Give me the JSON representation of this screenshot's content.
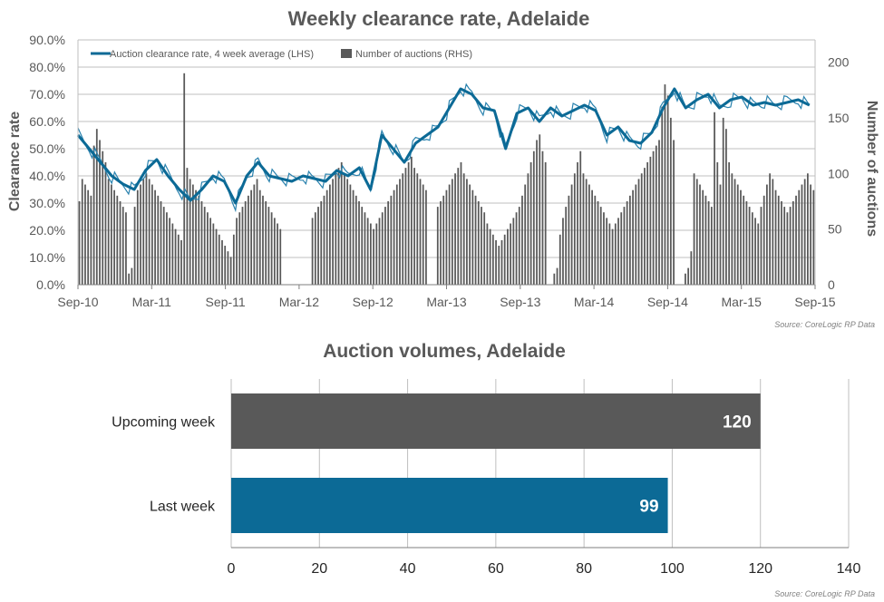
{
  "chart_data": [
    {
      "type": "line",
      "title": "Weekly clearance rate, Adelaide",
      "ylabel": "Clearance rate",
      "y2label": "Number of auctions",
      "ylim": [
        0,
        90
      ],
      "y2lim": [
        0,
        220
      ],
      "yticks": [
        "0.0%",
        "10.0%",
        "20.0%",
        "30.0%",
        "40.0%",
        "50.0%",
        "60.0%",
        "70.0%",
        "80.0%",
        "90.0%"
      ],
      "y2ticks": [
        "0",
        "50",
        "100",
        "150",
        "200"
      ],
      "x_tick_labels": [
        "Sep-10",
        "Mar-11",
        "Sep-11",
        "Mar-12",
        "Sep-12",
        "Mar-13",
        "Sep-13",
        "Mar-14",
        "Sep-14",
        "Mar-15",
        "Sep-15"
      ],
      "grid": true,
      "legend_position": "top-left",
      "legend": [
        {
          "label": "Auction clearance rate, 4 week average (LHS)",
          "kind": "line"
        },
        {
          "label": "Number of auctions (RHS)",
          "kind": "bar"
        }
      ],
      "series": [
        {
          "name": "Auction clearance rate, 4 week average (LHS)",
          "kind": "line",
          "color": "#0c6a96",
          "x": [
            0,
            4,
            8,
            12,
            16,
            20,
            24,
            28,
            32,
            36,
            40,
            44,
            48,
            52,
            56,
            60,
            64,
            68,
            72,
            76,
            80,
            84,
            88,
            92,
            96,
            100,
            104,
            108,
            112,
            116,
            120,
            124,
            128,
            132,
            136,
            140,
            144,
            148,
            152,
            156,
            160,
            164,
            168,
            172,
            176,
            180,
            184,
            188,
            192,
            196,
            200,
            204,
            208,
            212,
            216,
            220,
            224,
            228,
            232,
            236,
            240,
            244,
            248,
            252,
            256,
            260
          ],
          "values": [
            55,
            50,
            45,
            40,
            37,
            35,
            42,
            46,
            40,
            35,
            31,
            35,
            40,
            38,
            30,
            40,
            45,
            40,
            39,
            38,
            40,
            39,
            38,
            42,
            40,
            43,
            35,
            55,
            50,
            45,
            52,
            55,
            58,
            65,
            72,
            70,
            65,
            64,
            50,
            63,
            65,
            60,
            65,
            62,
            64,
            66,
            64,
            55,
            58,
            53,
            52,
            56,
            65,
            72,
            65,
            68,
            70,
            65,
            68,
            69,
            66,
            67,
            66,
            67,
            68,
            66
          ]
        },
        {
          "name": "Auction clearance rate (weekly)",
          "kind": "line",
          "color": "#2a82ae",
          "values_note": "thin line follows 4-week average with noise"
        },
        {
          "name": "Number of auctions (RHS)",
          "kind": "bar",
          "color": "#595959",
          "x_range": [
            0,
            262
          ],
          "values": [
            75,
            95,
            90,
            85,
            80,
            125,
            140,
            130,
            120,
            110,
            95,
            90,
            85,
            80,
            75,
            70,
            65,
            10,
            15,
            70,
            85,
            90,
            95,
            100,
            95,
            90,
            85,
            80,
            75,
            70,
            65,
            60,
            55,
            50,
            45,
            40,
            190,
            105,
            95,
            90,
            85,
            80,
            75,
            70,
            65,
            60,
            55,
            50,
            45,
            40,
            35,
            30,
            25,
            45,
            60,
            65,
            70,
            75,
            80,
            85,
            90,
            95,
            85,
            80,
            75,
            70,
            65,
            60,
            55,
            50,
            0,
            0,
            0,
            0,
            0,
            0,
            0,
            0,
            0,
            0,
            60,
            65,
            70,
            75,
            80,
            85,
            90,
            95,
            100,
            105,
            110,
            100,
            95,
            90,
            85,
            80,
            75,
            70,
            65,
            60,
            55,
            50,
            55,
            60,
            65,
            70,
            75,
            80,
            85,
            90,
            95,
            100,
            105,
            110,
            115,
            105,
            100,
            95,
            90,
            85,
            0,
            0,
            0,
            70,
            75,
            80,
            85,
            90,
            95,
            100,
            105,
            110,
            100,
            95,
            90,
            85,
            80,
            75,
            70,
            65,
            55,
            50,
            45,
            40,
            35,
            40,
            45,
            50,
            55,
            60,
            65,
            70,
            80,
            90,
            100,
            110,
            120,
            130,
            135,
            120,
            110,
            0,
            0,
            10,
            15,
            45,
            60,
            70,
            80,
            90,
            100,
            110,
            120,
            100,
            95,
            90,
            85,
            80,
            75,
            70,
            65,
            60,
            55,
            50,
            55,
            60,
            65,
            70,
            75,
            80,
            85,
            90,
            95,
            100,
            105,
            110,
            115,
            120,
            125,
            130,
            160,
            180,
            170,
            150,
            130,
            0,
            0,
            0,
            10,
            15,
            30,
            100,
            95,
            90,
            85,
            80,
            75,
            70,
            155,
            110,
            90,
            150,
            140,
            110,
            100,
            95,
            90,
            85,
            80,
            75,
            70,
            65,
            60,
            55,
            70,
            80,
            90,
            100,
            95,
            85,
            80,
            75,
            70,
            65,
            70,
            75,
            80,
            85,
            90,
            95,
            100,
            90,
            85
          ]
        }
      ],
      "source": "Source: CoreLogic  RP Data"
    },
    {
      "type": "bar",
      "orientation": "horizontal",
      "title": "Auction volumes, Adelaide",
      "categories": [
        "Upcoming week",
        "Last week"
      ],
      "values": [
        120,
        99
      ],
      "colors": [
        "#595959",
        "#0c6a96"
      ],
      "xlim": [
        0,
        140
      ],
      "xticks": [
        "0",
        "20",
        "40",
        "60",
        "80",
        "100",
        "120",
        "140"
      ],
      "grid": true,
      "source": "Source: CoreLogic  RP Data"
    }
  ]
}
